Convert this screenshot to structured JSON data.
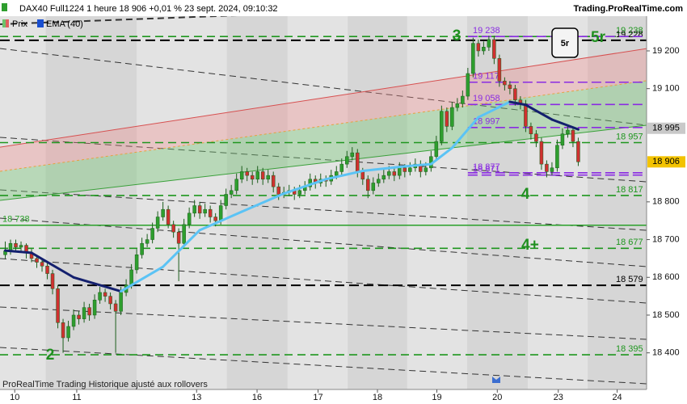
{
  "chart_data": {
    "type": "candlestick",
    "title": "DAX40 Full1224 1 heure 18 906 +0,01 % 23 sept. 2024, 09:10:32",
    "source": "Trading.ProRealTime.com",
    "footer": "ProRealTime Trading Historique ajusté aux rollovers",
    "price_name": "Prix",
    "up_color": "#2e9e2e",
    "down_color": "#d03030",
    "ylim": [
      18303,
      19292
    ],
    "yticks": [
      {
        "value": 18400,
        "label": "18 400"
      },
      {
        "value": 18500,
        "label": "18 500"
      },
      {
        "value": 18600,
        "label": "18 600"
      },
      {
        "value": 18700,
        "label": "18 700"
      },
      {
        "value": 18800,
        "label": "18 800"
      },
      {
        "value": 19100,
        "label": "19 100"
      },
      {
        "value": 19200,
        "label": "19 200"
      }
    ],
    "xlim": [
      -1,
      122
    ],
    "xticks": [
      {
        "value": 1.8,
        "label": "10"
      },
      {
        "value": 13.6,
        "label": "11"
      },
      {
        "value": 36.4,
        "label": "13"
      },
      {
        "value": 47.9,
        "label": "16"
      },
      {
        "value": 59.5,
        "label": "17"
      },
      {
        "value": 70.8,
        "label": "18"
      },
      {
        "value": 82.1,
        "label": "19"
      },
      {
        "value": 93.6,
        "label": "20"
      },
      {
        "value": 105.2,
        "label": "23"
      },
      {
        "value": 116.4,
        "label": "24"
      }
    ],
    "candles": [
      [
        18660,
        18695,
        18650,
        18670
      ],
      [
        18670,
        18700,
        18660,
        18690
      ],
      [
        18690,
        18700,
        18670,
        18680
      ],
      [
        18680,
        18695,
        18665,
        18685
      ],
      [
        18685,
        18690,
        18650,
        18665
      ],
      [
        18665,
        18675,
        18640,
        18650
      ],
      [
        18650,
        18660,
        18625,
        18640
      ],
      [
        18640,
        18650,
        18615,
        18630
      ],
      [
        18630,
        18640,
        18595,
        18610
      ],
      [
        18610,
        18620,
        18555,
        18570
      ],
      [
        18570,
        18580,
        18465,
        18480
      ],
      [
        18480,
        18490,
        18400,
        18440
      ],
      [
        18440,
        18485,
        18430,
        18470
      ],
      [
        18470,
        18515,
        18460,
        18500
      ],
      [
        18500,
        18510,
        18475,
        18490
      ],
      [
        18490,
        18535,
        18480,
        18520
      ],
      [
        18520,
        18530,
        18485,
        18500
      ],
      [
        18500,
        18555,
        18490,
        18540
      ],
      [
        18540,
        18575,
        18530,
        18560
      ],
      [
        18560,
        18570,
        18535,
        18550
      ],
      [
        18550,
        18560,
        18515,
        18530
      ],
      [
        18530,
        18540,
        18400,
        18510
      ],
      [
        18510,
        18575,
        18500,
        18560
      ],
      [
        18560,
        18595,
        18550,
        18580
      ],
      [
        18580,
        18635,
        18570,
        18620
      ],
      [
        18620,
        18675,
        18610,
        18660
      ],
      [
        18660,
        18705,
        18650,
        18690
      ],
      [
        18690,
        18715,
        18680,
        18700
      ],
      [
        18700,
        18745,
        18690,
        18730
      ],
      [
        18730,
        18775,
        18720,
        18760
      ],
      [
        18760,
        18800,
        18750,
        18780
      ],
      [
        18780,
        18790,
        18730,
        18740
      ],
      [
        18740,
        18750,
        18705,
        18720
      ],
      [
        18720,
        18730,
        18590,
        18690
      ],
      [
        18690,
        18755,
        18680,
        18740
      ],
      [
        18740,
        18785,
        18730,
        18770
      ],
      [
        18770,
        18805,
        18760,
        18790
      ],
      [
        18790,
        18800,
        18755,
        18770
      ],
      [
        18770,
        18795,
        18760,
        18780
      ],
      [
        18780,
        18790,
        18745,
        18760
      ],
      [
        18760,
        18770,
        18735,
        18750
      ],
      [
        18750,
        18805,
        18740,
        18790
      ],
      [
        18790,
        18835,
        18780,
        18820
      ],
      [
        18820,
        18845,
        18810,
        18830
      ],
      [
        18830,
        18875,
        18820,
        18860
      ],
      [
        18860,
        18895,
        18850,
        18880
      ],
      [
        18880,
        18890,
        18855,
        18870
      ],
      [
        18870,
        18880,
        18845,
        18860
      ],
      [
        18860,
        18895,
        18850,
        18880
      ],
      [
        18880,
        18890,
        18845,
        18860
      ],
      [
        18860,
        18885,
        18850,
        18870
      ],
      [
        18870,
        18880,
        18825,
        18840
      ],
      [
        18840,
        18850,
        18805,
        18820
      ],
      [
        18820,
        18840,
        18810,
        18825
      ],
      [
        18825,
        18845,
        18815,
        18830
      ],
      [
        18830,
        18840,
        18805,
        18820
      ],
      [
        18820,
        18845,
        18810,
        18830
      ],
      [
        18830,
        18855,
        18820,
        18840
      ],
      [
        18840,
        18875,
        18830,
        18860
      ],
      [
        18860,
        18870,
        18835,
        18850
      ],
      [
        18850,
        18875,
        18840,
        18860
      ],
      [
        18860,
        18870,
        18840,
        18855
      ],
      [
        18855,
        18885,
        18845,
        18870
      ],
      [
        18870,
        18895,
        18860,
        18880
      ],
      [
        18880,
        18915,
        18870,
        18900
      ],
      [
        18900,
        18935,
        18890,
        18920
      ],
      [
        18920,
        18945,
        18910,
        18930
      ],
      [
        18930,
        18940,
        18865,
        18880
      ],
      [
        18880,
        18890,
        18845,
        18860
      ],
      [
        18860,
        18870,
        18810,
        18830
      ],
      [
        18830,
        18865,
        18820,
        18850
      ],
      [
        18850,
        18875,
        18840,
        18860
      ],
      [
        18860,
        18885,
        18850,
        18870
      ],
      [
        18870,
        18895,
        18860,
        18880
      ],
      [
        18880,
        18890,
        18855,
        18870
      ],
      [
        18870,
        18905,
        18860,
        18890
      ],
      [
        18890,
        18900,
        18865,
        18880
      ],
      [
        18880,
        18905,
        18870,
        18890
      ],
      [
        18890,
        18915,
        18880,
        18900
      ],
      [
        18900,
        18910,
        18865,
        18880
      ],
      [
        18880,
        18905,
        18870,
        18890
      ],
      [
        18890,
        18935,
        18880,
        18920
      ],
      [
        18920,
        18975,
        18910,
        18960
      ],
      [
        18960,
        19055,
        18950,
        19040
      ],
      [
        19040,
        19050,
        18985,
        19000
      ],
      [
        19000,
        19065,
        18990,
        19050
      ],
      [
        19050,
        19075,
        19040,
        19060
      ],
      [
        19060,
        19095,
        19050,
        19080
      ],
      [
        19080,
        19155,
        19070,
        19140
      ],
      [
        19140,
        19235,
        19130,
        19220
      ],
      [
        19220,
        19230,
        19185,
        19200
      ],
      [
        19200,
        19225,
        19190,
        19210
      ],
      [
        19210,
        19240,
        19200,
        19230
      ],
      [
        19230,
        19240,
        19165,
        19180
      ],
      [
        19180,
        19190,
        19105,
        19120
      ],
      [
        19120,
        19130,
        19095,
        19110
      ],
      [
        19110,
        19120,
        19085,
        19100
      ],
      [
        19100,
        19110,
        19055,
        19070
      ],
      [
        19070,
        19080,
        19045,
        19060
      ],
      [
        19060,
        19070,
        18985,
        19000
      ],
      [
        19000,
        19010,
        18965,
        18980
      ],
      [
        18980,
        18990,
        18945,
        18960
      ],
      [
        18960,
        18970,
        18885,
        18900
      ],
      [
        18900,
        18910,
        18865,
        18880
      ],
      [
        18880,
        18905,
        18870,
        18890
      ],
      [
        18890,
        18965,
        18880,
        18950
      ],
      [
        18950,
        18995,
        18940,
        18980
      ],
      [
        18980,
        19000,
        18970,
        18990
      ],
      [
        18990,
        19000,
        18945,
        18960
      ],
      [
        18960,
        18970,
        18895,
        18906
      ]
    ],
    "ema": {
      "name": "EMA (40)",
      "color_up": "#5bc3f5",
      "color_down": "#14206e",
      "x": [
        0,
        5,
        13,
        22,
        30,
        37,
        45,
        53,
        61,
        68,
        76,
        81,
        85,
        90,
        96,
        99,
        104,
        109
      ],
      "values": [
        18671,
        18665,
        18600,
        18563,
        18628,
        18725,
        18774,
        18822,
        18860,
        18882,
        18894,
        18900,
        18943,
        19024,
        19065,
        19057,
        19018,
        18992
      ]
    },
    "channel": {
      "upper": [
        18945,
        19206
      ],
      "middle": [
        18881,
        19121
      ],
      "lower": [
        18804,
        19003
      ]
    },
    "levels": [
      {
        "value": 19238,
        "label": "19 238",
        "style": "green"
      },
      {
        "value": 19228,
        "label": "19 228",
        "style": "black"
      },
      {
        "value": 18957,
        "label": "18 957",
        "style": "green"
      },
      {
        "value": 18817,
        "label": "18 817",
        "style": "green"
      },
      {
        "value": 18738,
        "label": "18 738",
        "style": "solid"
      },
      {
        "value": 18677,
        "label": "18 677",
        "style": "green"
      },
      {
        "value": 18579,
        "label": "18 579",
        "style": "black"
      },
      {
        "value": 18395,
        "label": "18 395",
        "style": "green"
      },
      {
        "value": 19238,
        "label": "19 238",
        "style": "purple"
      },
      {
        "value": 19117,
        "label": "19 117",
        "style": "purple"
      },
      {
        "value": 19058,
        "label": "19 058",
        "style": "purple"
      },
      {
        "value": 18997,
        "label": "18 997",
        "style": "purple"
      },
      {
        "value": 18877,
        "label": "18 877",
        "style": "purple"
      },
      {
        "value": 18871,
        "label": "18 871",
        "style": "purple"
      }
    ],
    "price_tags": [
      {
        "value": 18995,
        "label": "18 995",
        "color": "#c9c9c9"
      },
      {
        "value": 18906,
        "label": "18 906",
        "color": "#f3c300"
      }
    ],
    "annotations": [
      "3",
      "5r",
      "4",
      "4+",
      "2",
      "5r"
    ]
  }
}
